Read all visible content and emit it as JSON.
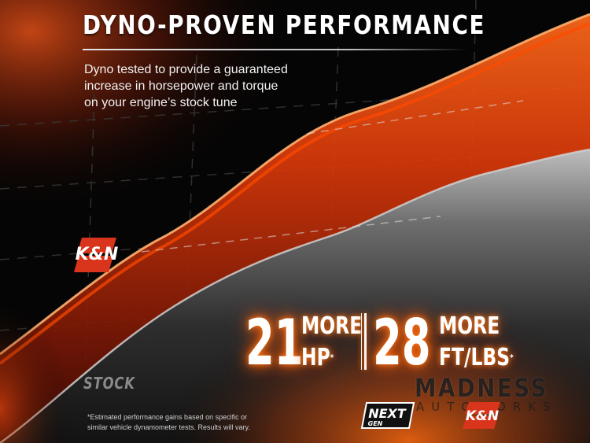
{
  "header": {
    "title": "DYNO-PROVEN PERFORMANCE",
    "subtitle_lines": [
      "Dyno tested to provide a guaranteed",
      "increase in horsepower and torque",
      "on your engine’s stock tune"
    ]
  },
  "chart": {
    "kn_curve_label": "K&N",
    "stock_curve_label": "STOCK",
    "colors": {
      "kn_curve": "#ff5a00",
      "stock_curve": "#8a8a8a",
      "background": "#050404",
      "glow": "#ff7a1a"
    }
  },
  "stats": {
    "hp": {
      "number": "21",
      "word1": "MORE",
      "word2": "HP",
      "asterisk": "*"
    },
    "torque": {
      "number": "28",
      "word1": "MORE",
      "word2": "FT/LBS",
      "asterisk": "*"
    }
  },
  "footnote": {
    "lines": [
      "*Estimated performance gains based on specific or",
      "similar vehicle dynamometer tests. Results will vary."
    ]
  },
  "logos": {
    "kn_main": "K&N",
    "kn_small": "K&N",
    "nextgen_top": "NEXT",
    "nextgen_bottom": "GEN",
    "watermark_top": "MADNESS",
    "watermark_bottom": "AUTOWORKS"
  }
}
